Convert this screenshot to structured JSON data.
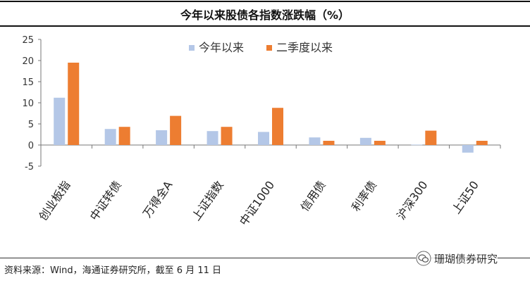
{
  "page": {
    "title": "今年以来股债各指数涨跌幅（%）",
    "source": "资料来源：Wind，海通证券研究所，截至 6 月 11 日",
    "watermark": "珊瑚债券研究",
    "watermark_icon": "wechat-icon"
  },
  "chart_data": {
    "type": "bar",
    "title": "今年以来股债各指数涨跌幅（%）",
    "categories": [
      "创业板指",
      "中证转债",
      "万得全A",
      "上证指数",
      "中证1000",
      "信用债",
      "利率债",
      "沪深300",
      "上证50"
    ],
    "series": [
      {
        "name": "今年以来",
        "color": "#b4c7e7",
        "values": [
          11.2,
          3.8,
          3.5,
          3.3,
          3.1,
          1.8,
          1.7,
          0.1,
          -1.8
        ]
      },
      {
        "name": "二季度以来",
        "color": "#ed7d31",
        "values": [
          19.5,
          4.3,
          6.9,
          4.3,
          8.8,
          1.0,
          1.0,
          3.4,
          1.0
        ]
      }
    ],
    "ylim": [
      -5,
      25
    ],
    "yticks": [
      -5,
      0,
      5,
      10,
      15,
      20,
      25
    ],
    "grid": false,
    "legend": "top-center"
  }
}
